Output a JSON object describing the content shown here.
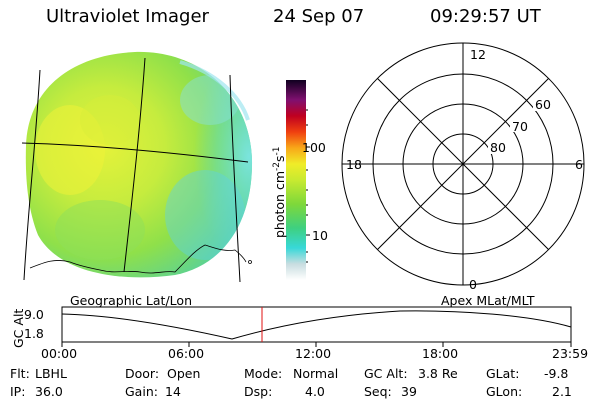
{
  "header": {
    "instrument": "Ultraviolet Imager",
    "date": "24 Sep 07",
    "time": "09:29:57 UT"
  },
  "image_label": "Geographic Lat/Lon",
  "colorbar": {
    "unit": "photon cm",
    "exp1": "-2",
    "s": "s",
    "exp2": "-1",
    "tick_100": "100",
    "tick_10": "10"
  },
  "polar": {
    "mlt_12": "12",
    "mlt_18": "18",
    "mlt_6": "6",
    "mlt_0": "0",
    "lat_60": "60",
    "lat_70": "70",
    "lat_80": "80",
    "label": "Apex MLat/MLT"
  },
  "orbit": {
    "axis_label": "GC Alt",
    "y_top": "9.0",
    "y_bottom": "1.8",
    "x_ticks": [
      "00:00",
      "06:00",
      "12:00",
      "18:00",
      "23:59"
    ]
  },
  "footer": {
    "flt_label": "Flt:",
    "flt": "LBHL",
    "ip_label": "IP:",
    "ip": "36.0",
    "door_label": "Door:",
    "door": "Open",
    "gain_label": "Gain:",
    "gain": "14",
    "mode_label": "Mode:",
    "mode": "Normal",
    "dsp_label": "Dsp:",
    "dsp": "4.0",
    "gcalt_label": "GC Alt:",
    "gcalt": "3.8 Re",
    "seq_label": "Seq:",
    "seq": "39",
    "glat_label": "GLat:",
    "glat": "-9.8",
    "glon_label": "GLon:",
    "glon": "2.1"
  }
}
